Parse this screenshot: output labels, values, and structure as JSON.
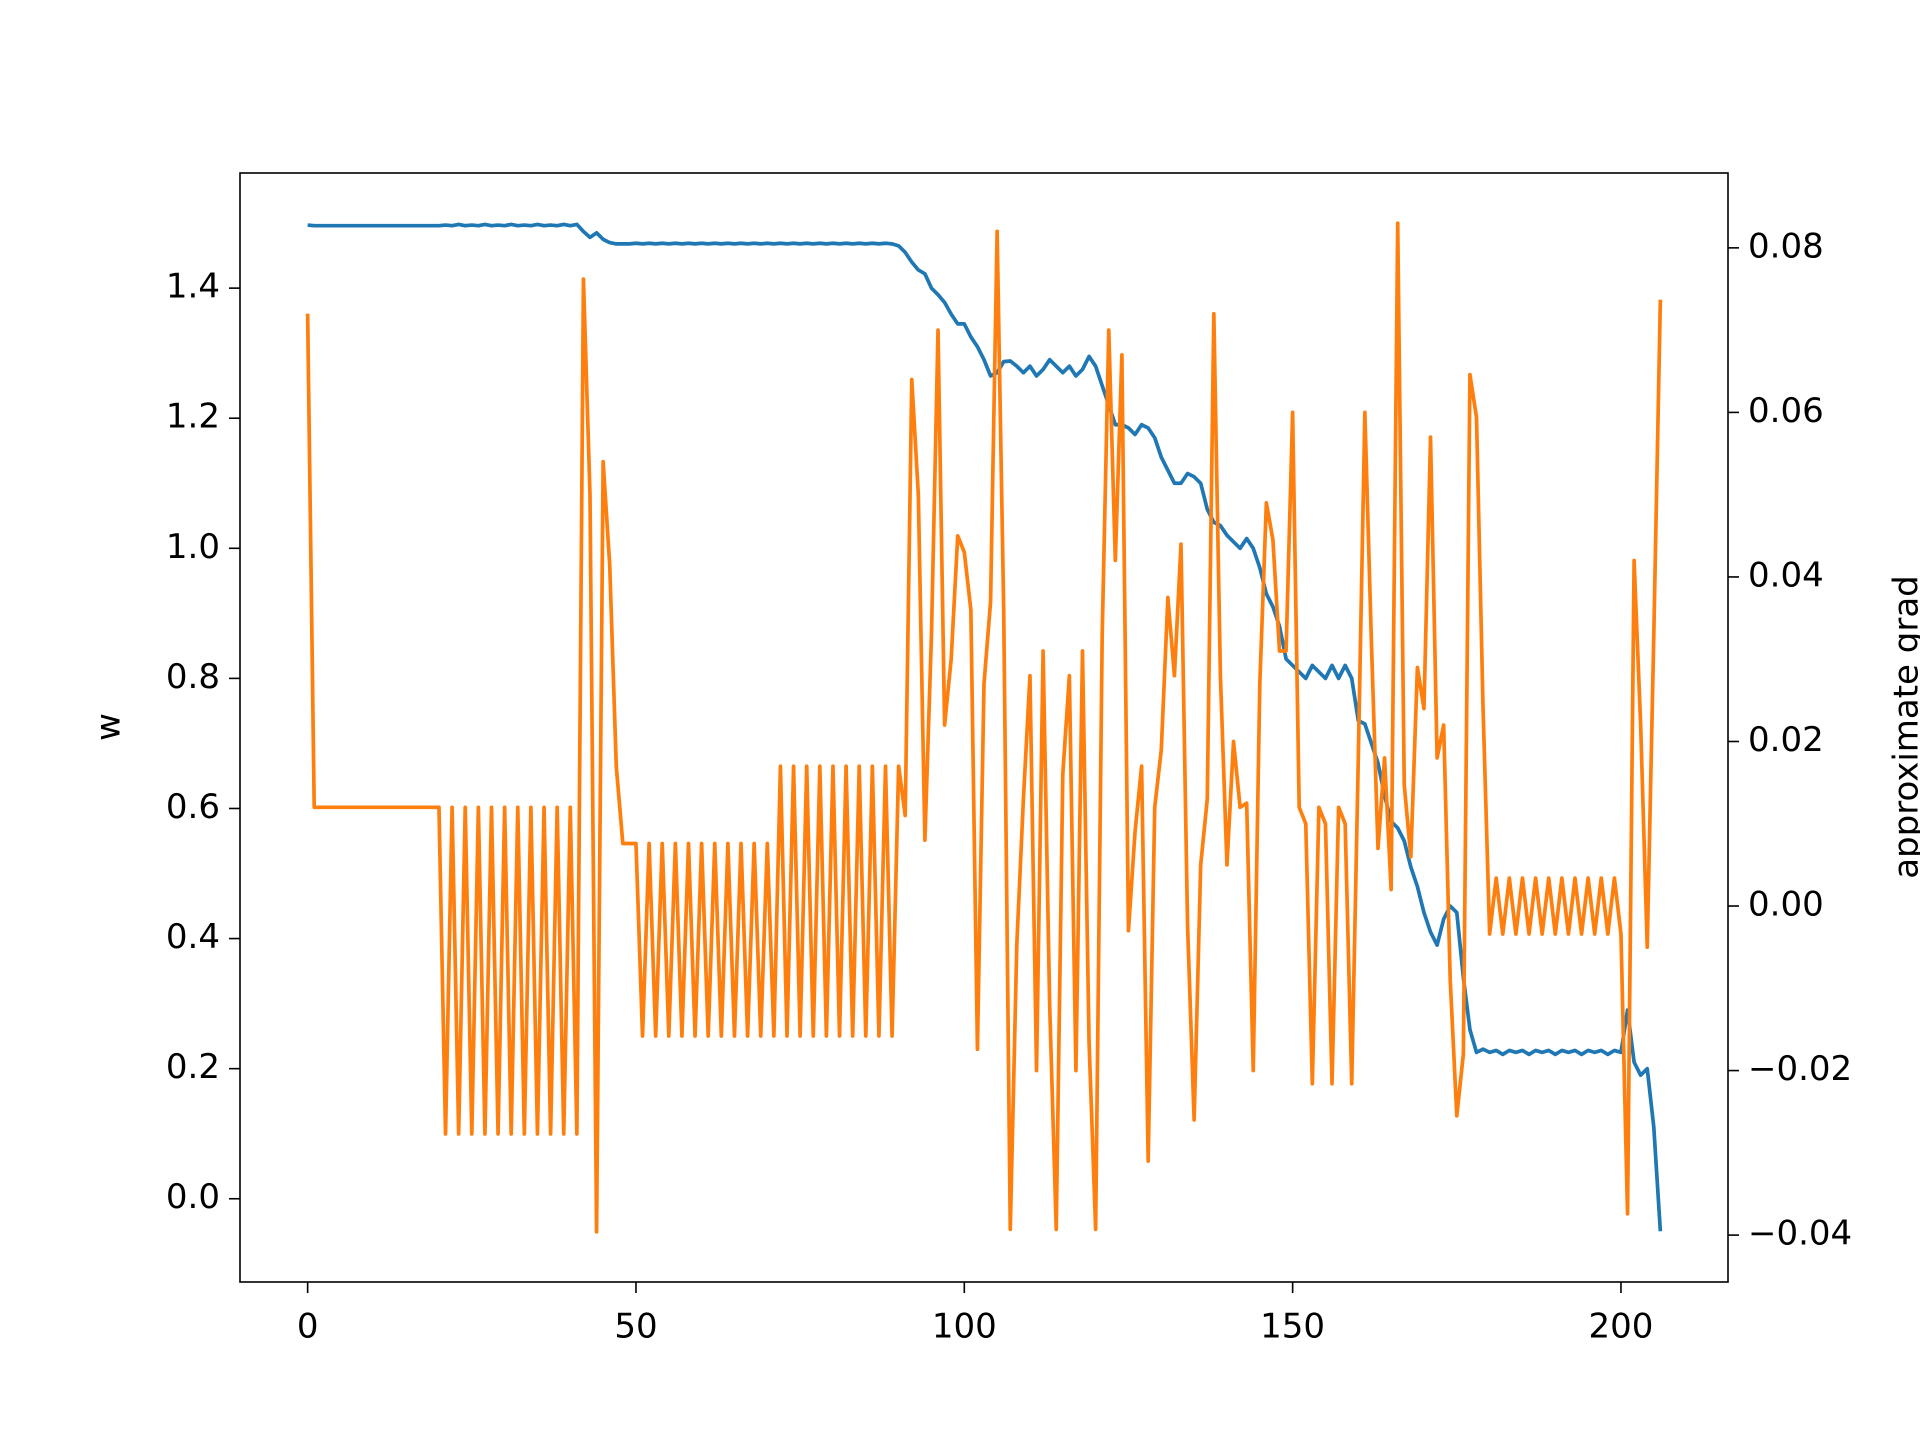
{
  "chart_data": {
    "type": "line",
    "ylabel": "w",
    "y2label": "approximate grad",
    "x": [
      0,
      1,
      2,
      3,
      4,
      5,
      6,
      7,
      8,
      9,
      10,
      11,
      12,
      13,
      14,
      15,
      16,
      17,
      18,
      19,
      20,
      21,
      22,
      23,
      24,
      25,
      26,
      27,
      28,
      29,
      30,
      31,
      32,
      33,
      34,
      35,
      36,
      37,
      38,
      39,
      40,
      41,
      42,
      43,
      44,
      45,
      46,
      47,
      48,
      49,
      50,
      51,
      52,
      53,
      54,
      55,
      56,
      57,
      58,
      59,
      60,
      61,
      62,
      63,
      64,
      65,
      66,
      67,
      68,
      69,
      70,
      71,
      72,
      73,
      74,
      75,
      76,
      77,
      78,
      79,
      80,
      81,
      82,
      83,
      84,
      85,
      86,
      87,
      88,
      89,
      90,
      91,
      92,
      93,
      94,
      95,
      96,
      97,
      98,
      99,
      100,
      101,
      102,
      103,
      104,
      105,
      106,
      107,
      108,
      109,
      110,
      111,
      112,
      113,
      114,
      115,
      116,
      117,
      118,
      119,
      120,
      121,
      122,
      123,
      124,
      125,
      126,
      127,
      128,
      129,
      130,
      131,
      132,
      133,
      134,
      135,
      136,
      137,
      138,
      139,
      140,
      141,
      142,
      143,
      144,
      145,
      146,
      147,
      148,
      149,
      150,
      151,
      152,
      153,
      154,
      155,
      156,
      157,
      158,
      159,
      160,
      161,
      162,
      163,
      164,
      165,
      166,
      167,
      168,
      169,
      170,
      171,
      172,
      173,
      174,
      175,
      176,
      177,
      178,
      179,
      180,
      181,
      182,
      183,
      184,
      185,
      186,
      187,
      188,
      189,
      190,
      191,
      192,
      193,
      194,
      195,
      196,
      197,
      198,
      199,
      200,
      201,
      202,
      203,
      204,
      205,
      206
    ],
    "series": [
      {
        "color": "#1f77b4",
        "values": [
          1.497,
          1.496,
          1.496,
          1.496,
          1.496,
          1.496,
          1.496,
          1.496,
          1.496,
          1.496,
          1.496,
          1.496,
          1.496,
          1.496,
          1.496,
          1.496,
          1.496,
          1.496,
          1.496,
          1.496,
          1.496,
          1.497,
          1.496,
          1.498,
          1.496,
          1.497,
          1.496,
          1.498,
          1.496,
          1.497,
          1.496,
          1.498,
          1.496,
          1.497,
          1.496,
          1.498,
          1.496,
          1.497,
          1.496,
          1.498,
          1.496,
          1.498,
          1.487,
          1.478,
          1.485,
          1.475,
          1.47,
          1.468,
          1.468,
          1.468,
          1.469,
          1.468,
          1.469,
          1.468,
          1.469,
          1.468,
          1.469,
          1.468,
          1.469,
          1.468,
          1.469,
          1.468,
          1.469,
          1.468,
          1.469,
          1.468,
          1.469,
          1.468,
          1.469,
          1.468,
          1.469,
          1.468,
          1.469,
          1.468,
          1.469,
          1.468,
          1.469,
          1.468,
          1.469,
          1.468,
          1.469,
          1.468,
          1.469,
          1.468,
          1.469,
          1.468,
          1.469,
          1.468,
          1.469,
          1.468,
          1.465,
          1.455,
          1.44,
          1.428,
          1.422,
          1.4,
          1.39,
          1.378,
          1.36,
          1.345,
          1.345,
          1.325,
          1.31,
          1.29,
          1.265,
          1.27,
          1.287,
          1.288,
          1.28,
          1.27,
          1.28,
          1.265,
          1.275,
          1.29,
          1.28,
          1.27,
          1.28,
          1.265,
          1.275,
          1.295,
          1.28,
          1.25,
          1.22,
          1.19,
          1.19,
          1.185,
          1.175,
          1.19,
          1.185,
          1.17,
          1.14,
          1.12,
          1.1,
          1.1,
          1.115,
          1.11,
          1.1,
          1.06,
          1.04,
          1.035,
          1.02,
          1.01,
          1.0,
          1.015,
          1.0,
          0.97,
          0.93,
          0.91,
          0.88,
          0.83,
          0.82,
          0.81,
          0.8,
          0.82,
          0.81,
          0.8,
          0.82,
          0.8,
          0.82,
          0.8,
          0.735,
          0.73,
          0.7,
          0.67,
          0.62,
          0.58,
          0.57,
          0.55,
          0.51,
          0.48,
          0.44,
          0.41,
          0.39,
          0.43,
          0.45,
          0.44,
          0.34,
          0.26,
          0.225,
          0.23,
          0.225,
          0.228,
          0.222,
          0.228,
          0.225,
          0.228,
          0.222,
          0.228,
          0.225,
          0.228,
          0.222,
          0.228,
          0.225,
          0.228,
          0.222,
          0.228,
          0.225,
          0.228,
          0.222,
          0.228,
          0.225,
          0.29,
          0.21,
          0.19,
          0.2,
          0.11,
          -0.05
        ]
      },
      {
        "color": "#ff7f0e",
        "axis": "y2",
        "values": [
          0.072,
          0.012,
          0.012,
          0.012,
          0.012,
          0.012,
          0.012,
          0.012,
          0.012,
          0.012,
          0.012,
          0.012,
          0.012,
          0.012,
          0.012,
          0.012,
          0.012,
          0.012,
          0.012,
          0.012,
          0.012,
          -0.0277,
          0.012,
          -0.0277,
          0.012,
          -0.0277,
          0.012,
          -0.0277,
          0.012,
          -0.0277,
          0.012,
          -0.0277,
          0.012,
          -0.0277,
          0.012,
          -0.0277,
          0.012,
          -0.0277,
          0.012,
          -0.0277,
          0.012,
          -0.0277,
          0.0762,
          0.05,
          -0.0396,
          0.054,
          0.0415,
          0.017,
          0.0076,
          0.0076,
          0.0076,
          -0.0158,
          0.0076,
          -0.0158,
          0.0076,
          -0.0158,
          0.0076,
          -0.0158,
          0.0076,
          -0.0158,
          0.0076,
          -0.0158,
          0.0076,
          -0.0158,
          0.0076,
          -0.0158,
          0.0076,
          -0.0158,
          0.0076,
          -0.0158,
          0.0076,
          -0.0158,
          0.017,
          -0.0158,
          0.017,
          -0.0158,
          0.017,
          -0.0158,
          0.017,
          -0.0158,
          0.017,
          -0.0158,
          0.017,
          -0.0158,
          0.017,
          -0.0158,
          0.017,
          -0.0158,
          0.017,
          -0.0158,
          0.017,
          0.011,
          0.064,
          0.05,
          0.008,
          0.033,
          0.07,
          0.022,
          0.03,
          0.045,
          0.043,
          0.036,
          -0.0174,
          0.027,
          0.037,
          0.082,
          0.036,
          -0.0393,
          -0.0046,
          0.013,
          0.028,
          -0.02,
          0.031,
          -0.012,
          -0.0393,
          0.016,
          0.028,
          -0.02,
          0.031,
          -0.0165,
          -0.0393,
          0.033,
          0.07,
          0.042,
          0.067,
          -0.003,
          0.009,
          0.017,
          -0.031,
          0.012,
          0.019,
          0.0375,
          0.028,
          0.044,
          -0.0024,
          -0.026,
          0.005,
          0.013,
          0.072,
          0.028,
          0.005,
          0.02,
          0.012,
          0.0125,
          -0.02,
          0.027,
          0.049,
          0.0445,
          0.031,
          0.031,
          0.06,
          0.012,
          0.01,
          -0.0216,
          0.012,
          0.01,
          -0.0216,
          0.012,
          0.01,
          -0.0216,
          0.018,
          0.06,
          0.032,
          0.007,
          0.018,
          0.002,
          0.083,
          0.0147,
          0.006,
          0.029,
          0.024,
          0.057,
          0.018,
          0.022,
          -0.009,
          -0.0255,
          -0.018,
          0.0646,
          0.0594,
          0.024,
          -0.0034,
          0.0034,
          -0.0034,
          0.0034,
          -0.0034,
          0.0034,
          -0.0034,
          0.0034,
          -0.0034,
          0.0034,
          -0.0034,
          0.0034,
          -0.0034,
          0.0034,
          -0.0034,
          0.0034,
          -0.0034,
          0.0034,
          -0.0034,
          0.0034,
          -0.0034,
          -0.0374,
          0.042,
          0.022,
          -0.005,
          0.033,
          0.0737
        ]
      }
    ],
    "xlim": [
      -10.3,
      216.3
    ],
    "xticks": [
      0,
      50,
      100,
      150,
      200
    ],
    "ylim": [
      -0.128,
      1.577
    ],
    "yticks": [
      {
        "value": 0,
        "label": "0.0"
      },
      0.2,
      0.4,
      0.6,
      0.8,
      {
        "value": 1,
        "label": "1.0"
      },
      1.2,
      1.4
    ],
    "y2lim": [
      -0.0457,
      0.0891
    ],
    "y2ticks": [
      {
        "value": -0.04,
        "label": "−0.04"
      },
      {
        "value": -0.02,
        "label": "−0.02"
      },
      {
        "value": 0,
        "label": "0.00"
      },
      0.02,
      0.04,
      0.06,
      0.08
    ]
  }
}
